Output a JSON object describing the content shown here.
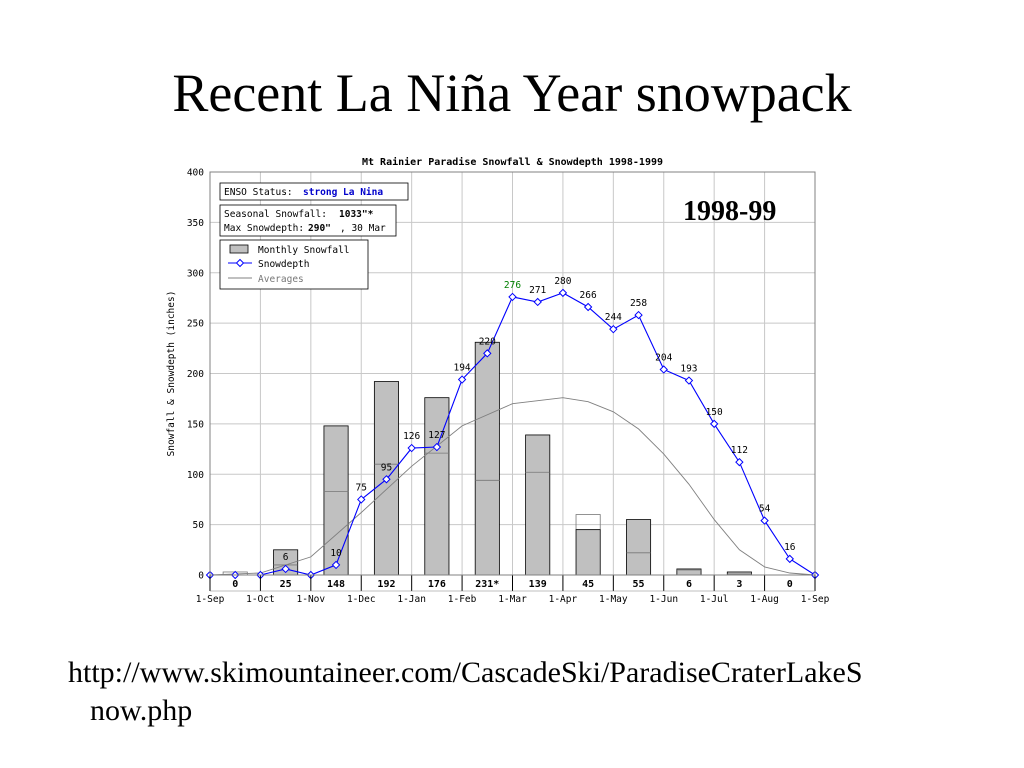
{
  "slide": {
    "title": "Recent La Niña Year snowpack",
    "badge": "1998-99",
    "url_line1": "http://www.skimountaineer.com/CascadeSki/ParadiseCraterLakeS",
    "url_line2": "now.php"
  },
  "chart_data": {
    "type": "bar",
    "title": "Mt Rainier Paradise Snowfall & Snowdepth 1998-1999",
    "ylabel": "Snowfall & Snowdepth (inches)",
    "ylim": [
      0,
      400
    ],
    "yticks": [
      0,
      50,
      100,
      150,
      200,
      250,
      300,
      350,
      400
    ],
    "x_ticks": [
      "1-Sep",
      "1-Oct",
      "1-Nov",
      "1-Dec",
      "1-Jan",
      "1-Feb",
      "1-Mar",
      "1-Apr",
      "1-May",
      "1-Jun",
      "1-Jul",
      "1-Aug",
      "1-Sep"
    ],
    "grid": true,
    "legend_position": "top-left",
    "info_box": {
      "enso_label": "ENSO Status:",
      "enso_value": "strong La Nina",
      "snowfall_label": "Seasonal Snowfall:",
      "snowfall_value": "1033\"*",
      "depth_label": "Max Snowdepth:",
      "depth_value": "290\"",
      "depth_date": ", 30 Mar"
    },
    "legend": {
      "bars": "Monthly Snowfall",
      "line": "Snowdepth",
      "avg": "Averages"
    },
    "monthly_snowfall": {
      "labels": [
        "0",
        "25",
        "148",
        "192",
        "176",
        "231*",
        "139",
        "45",
        "55",
        "6",
        "3",
        "0"
      ],
      "values": [
        0,
        25,
        148,
        192,
        176,
        231,
        139,
        45,
        55,
        6,
        3,
        0
      ],
      "averages": [
        3,
        10,
        83,
        110,
        121,
        94,
        102,
        60,
        22,
        5,
        1,
        0
      ]
    },
    "snowdepth": {
      "x": [
        0,
        0.5,
        1,
        1.5,
        2,
        2.5,
        3,
        3.5,
        4,
        4.5,
        5,
        5.5,
        6,
        6.5,
        7,
        7.5,
        8,
        8.5,
        9,
        9.5,
        10,
        10.5,
        11,
        11.5,
        12
      ],
      "values": [
        0,
        0,
        0,
        6,
        0,
        10,
        75,
        95,
        126,
        127,
        194,
        220,
        276,
        271,
        280,
        266,
        244,
        258,
        204,
        193,
        150,
        112,
        54,
        16,
        0
      ],
      "labels": [
        "",
        "",
        "",
        "6",
        "",
        "10",
        "75",
        "95",
        "126",
        "127",
        "194",
        "220",
        "276",
        "271",
        "280",
        "266",
        "244",
        "258",
        "204",
        "193",
        "150",
        "112",
        "54",
        "16",
        ""
      ]
    },
    "average_depth": {
      "x": [
        0,
        1,
        2,
        3,
        4,
        5,
        6,
        7,
        7.5,
        8,
        8.5,
        9,
        9.5,
        10,
        10.5,
        11,
        11.5,
        12
      ],
      "values": [
        0,
        2,
        18,
        62,
        108,
        148,
        170,
        176,
        172,
        162,
        145,
        120,
        90,
        55,
        25,
        8,
        2,
        0
      ]
    },
    "colors": {
      "bar_fill": "#c0c0c0",
      "line": "#0000ff",
      "avg_line": "#808080",
      "max_label": "#008000",
      "enso_value": "#0000cc"
    }
  }
}
